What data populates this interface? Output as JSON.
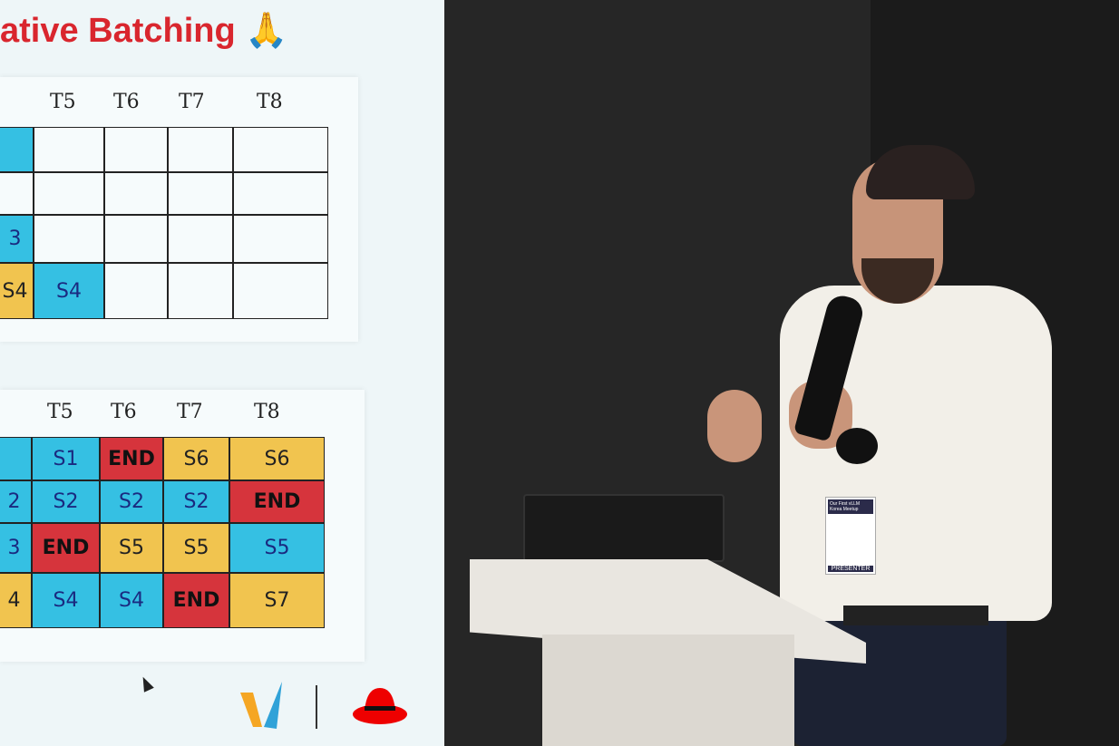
{
  "slide": {
    "title": "ative Batching 🙏",
    "top_grid": {
      "headers": [
        "T5",
        "T6",
        "T7",
        "T8"
      ],
      "cells": [
        [
          "b",
          "",
          "",
          "",
          ""
        ],
        [
          "",
          "",
          "",
          "",
          ""
        ],
        [
          "b",
          "",
          "",
          "",
          ""
        ],
        [
          "y",
          "b",
          "",
          "",
          ""
        ]
      ],
      "labels": [
        [
          "",
          "",
          "",
          "",
          ""
        ],
        [
          "",
          "",
          "",
          "",
          ""
        ],
        [
          "3",
          "",
          "",
          "",
          ""
        ],
        [
          "S4",
          "S4",
          "",
          "",
          ""
        ]
      ]
    },
    "bottom_grid": {
      "headers": [
        "T5",
        "T6",
        "T7",
        "T8"
      ],
      "cells": [
        [
          "b",
          "b",
          "r",
          "y",
          "y"
        ],
        [
          "b",
          "b",
          "b",
          "b",
          "r"
        ],
        [
          "b",
          "r",
          "y",
          "y",
          "b"
        ],
        [
          "y",
          "b",
          "b",
          "r",
          "y"
        ]
      ],
      "labels": [
        [
          "",
          "S1",
          "END",
          "S6",
          "S6"
        ],
        [
          "2",
          "S2",
          "S2",
          "S2",
          "END"
        ],
        [
          "3",
          "END",
          "S5",
          "S5",
          "S5"
        ],
        [
          "4",
          "S4",
          "S4",
          "END",
          "S7"
        ]
      ]
    },
    "logos": [
      "vllm-logo",
      "redhat-logo"
    ]
  },
  "badge": {
    "event": "Our First vLLM Korea Meetup",
    "role": "PRESENTER"
  },
  "colors": {
    "blue": "#35c0e3",
    "yellow": "#f1c44f",
    "red": "#d6343c",
    "title": "#d9262e"
  }
}
